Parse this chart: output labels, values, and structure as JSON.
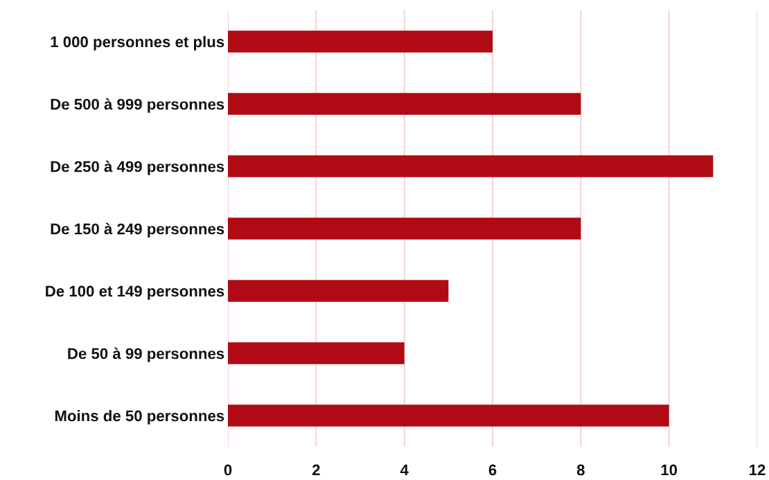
{
  "chart_data": {
    "type": "bar",
    "orientation": "horizontal",
    "categories": [
      "1 000 personnes et plus",
      "De 500 à 999 personnes",
      "De 250 à 499 personnes",
      "De 150 à 249 personnes",
      "De 100 et 149 personnes",
      "De 50 à 99 personnes",
      "Moins de 50 personnes"
    ],
    "values": [
      6,
      8,
      11,
      8,
      5,
      4,
      10
    ],
    "color": "#b00b14",
    "xlim": [
      0,
      12
    ],
    "xticks": [
      0,
      2,
      4,
      6,
      8,
      10,
      12
    ],
    "grid": "x",
    "legend": false
  }
}
